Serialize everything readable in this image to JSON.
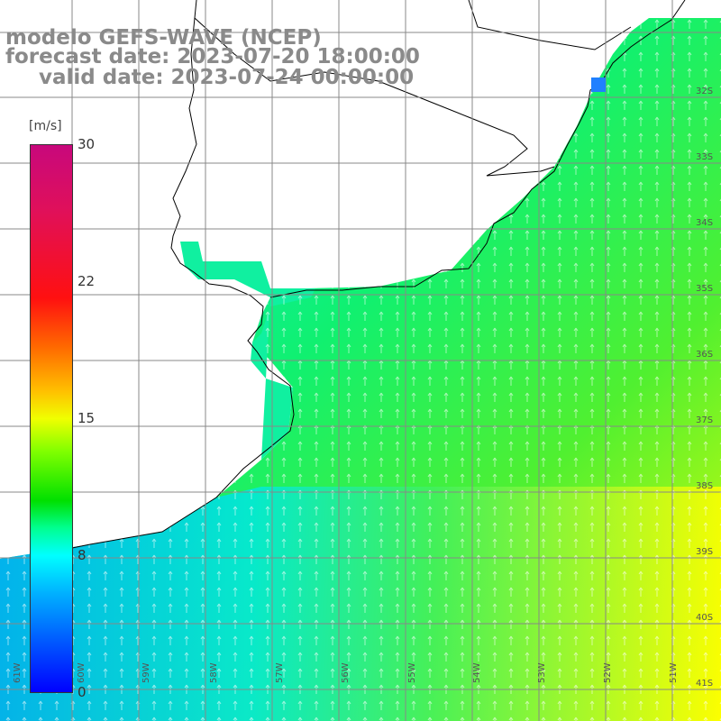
{
  "title": {
    "line1": "modelo GEFS-WAVE (NCEP)",
    "line2": "forecast date: 2023-07-20 18:00:00",
    "line3": "valid date: 2023-07-24 00:00:00"
  },
  "colorbar": {
    "units": "[m/s]",
    "ticks": [
      "30",
      "22",
      "15",
      "8",
      "0"
    ],
    "tick_values": [
      30,
      22,
      15,
      8,
      0
    ],
    "colors": [
      "#c8087c",
      "#ff1010",
      "#ffc000",
      "#f0ff00",
      "#00e000",
      "#00ffff",
      "#0060ff",
      "#0000ff"
    ]
  },
  "map": {
    "lat_labels": [
      "32S",
      "33S",
      "34S",
      "35S",
      "36S",
      "37S",
      "38S",
      "39S",
      "40S",
      "41S"
    ],
    "lon_labels": [
      "61W",
      "60W",
      "59W",
      "58W",
      "57W",
      "56W",
      "55W",
      "54W",
      "53W",
      "52W",
      "51W"
    ],
    "wind_arrows": "white-vector-arrows",
    "land_color": "#ffffff",
    "grid_color": "#888888",
    "coast_color": "#000000"
  }
}
